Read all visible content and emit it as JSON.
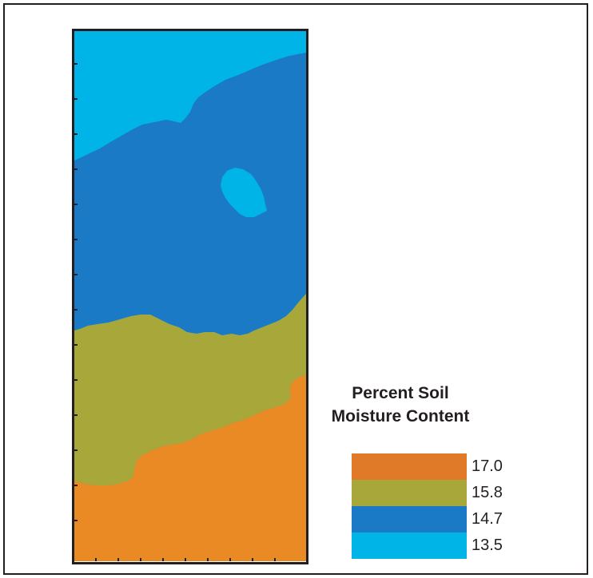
{
  "legend": {
    "title_line1": "Percent Soil",
    "title_line2": "Moisture Content",
    "items": [
      {
        "value": "17.0",
        "color": "#e07a29"
      },
      {
        "value": "15.8",
        "color": "#a7a73a"
      },
      {
        "value": "14.7",
        "color": "#1b7ac6"
      },
      {
        "value": "13.5",
        "color": "#00b4e8"
      }
    ]
  },
  "map": {
    "zones": [
      {
        "name": "moisture-13.5",
        "color": "#00b4e8"
      },
      {
        "name": "moisture-14.7",
        "color": "#1b7ac6"
      },
      {
        "name": "moisture-15.8",
        "color": "#a7a73a"
      },
      {
        "name": "moisture-17.0",
        "color": "#e98a25"
      }
    ]
  }
}
